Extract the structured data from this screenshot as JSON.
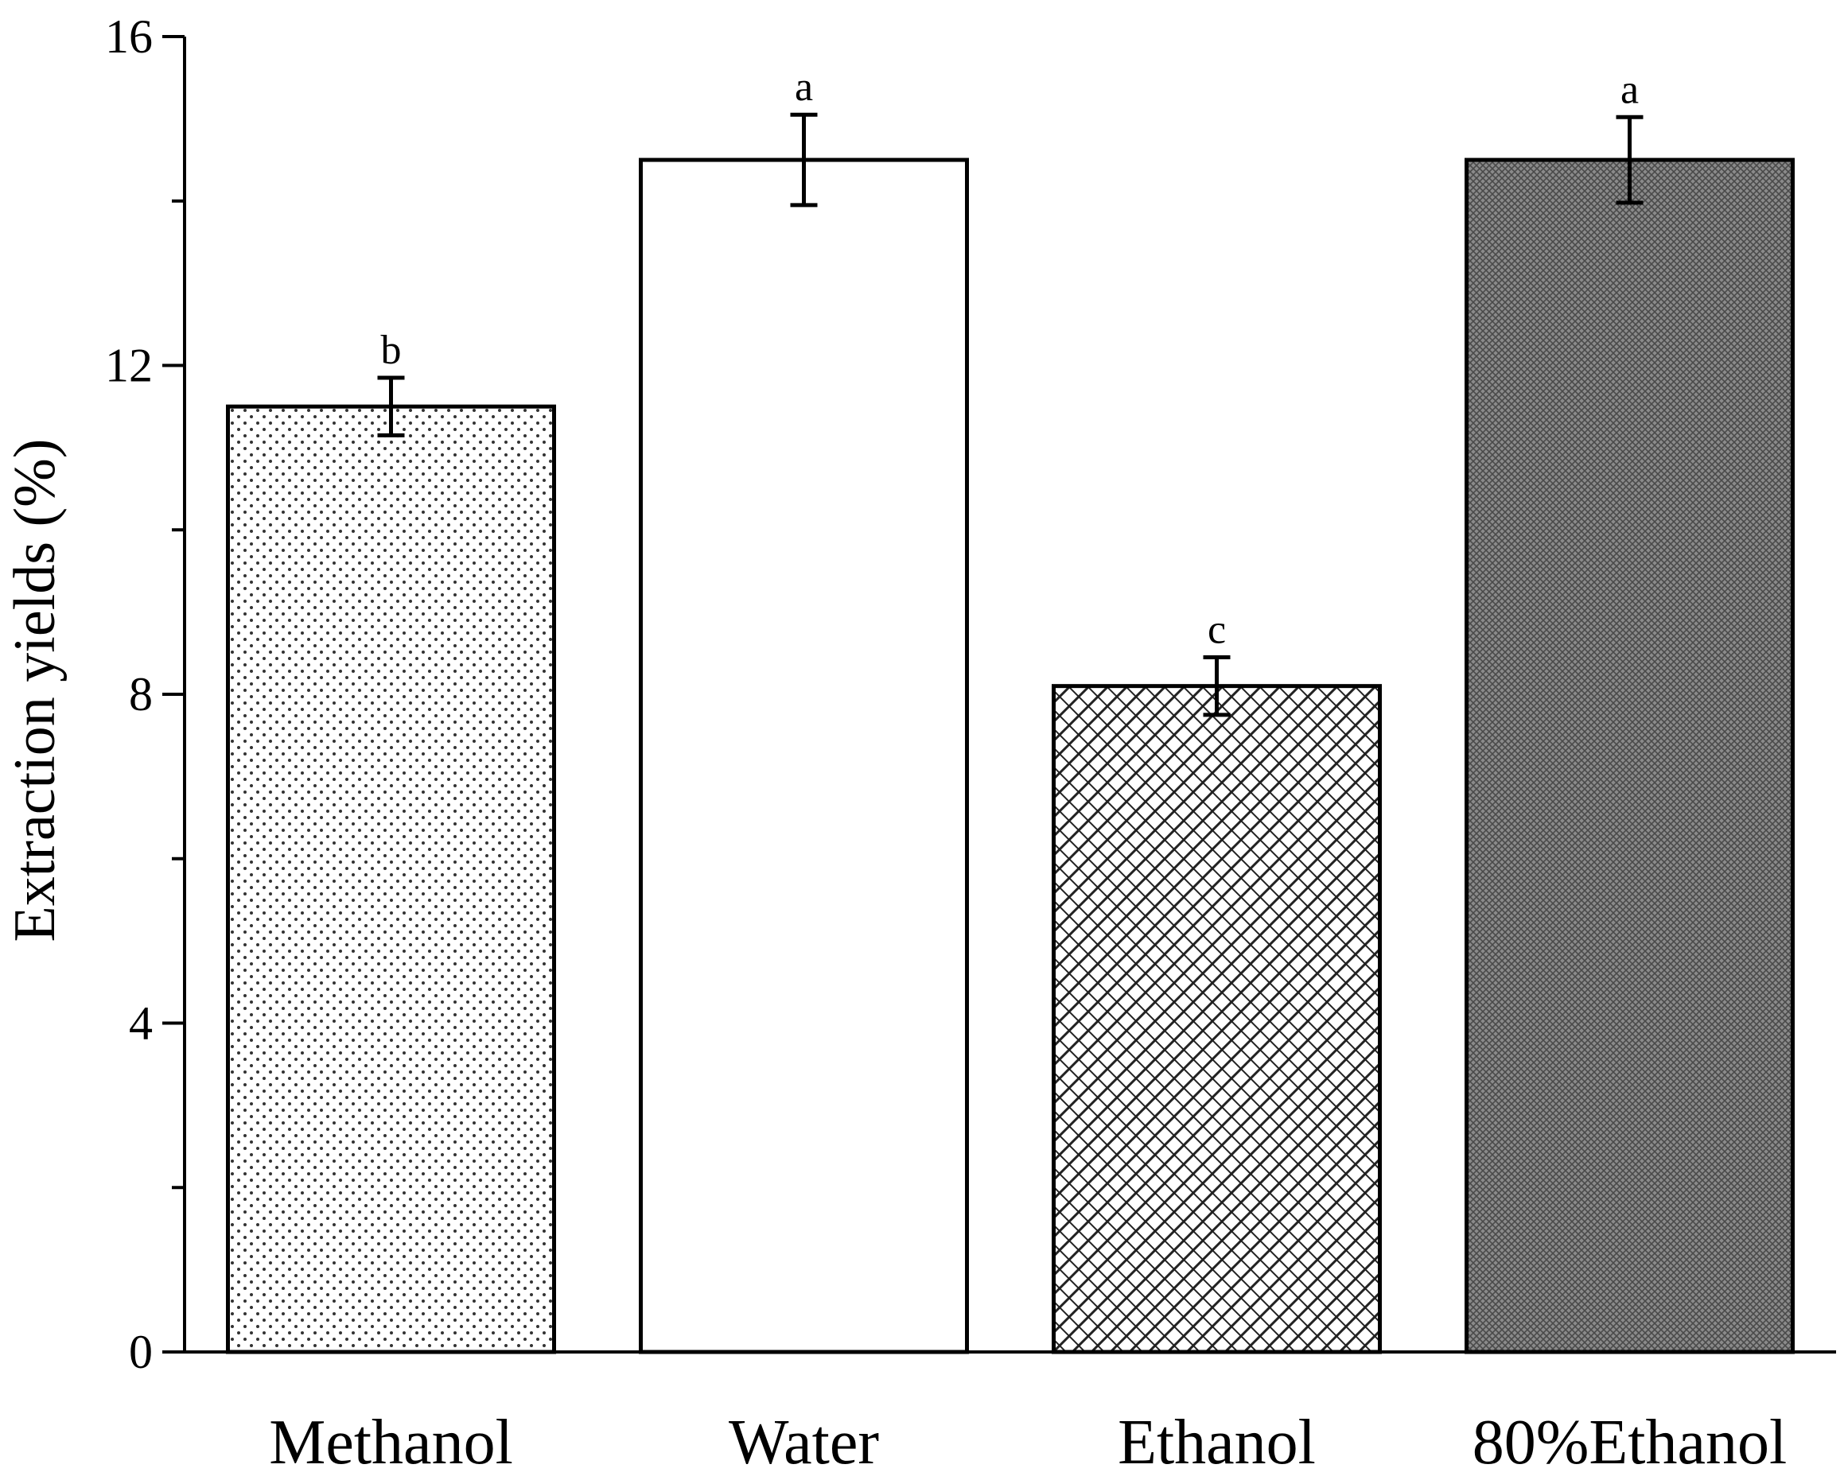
{
  "chart_data": {
    "type": "bar",
    "title": "",
    "xlabel": "",
    "ylabel": "Extraction yields (%)",
    "ylim": [
      0,
      16
    ],
    "yticks": [
      0,
      4,
      8,
      12,
      16
    ],
    "grid": false,
    "categories": [
      "Methanol",
      "Water",
      "Ethanol",
      "80%Ethanol"
    ],
    "values": [
      11.5,
      14.5,
      8.1,
      14.5
    ],
    "errors": [
      0.35,
      0.55,
      0.35,
      0.52
    ],
    "significance": [
      "b",
      "a",
      "c",
      "a"
    ],
    "patterns": [
      "dots",
      "none",
      "crosshatch",
      "dense-grid"
    ]
  }
}
